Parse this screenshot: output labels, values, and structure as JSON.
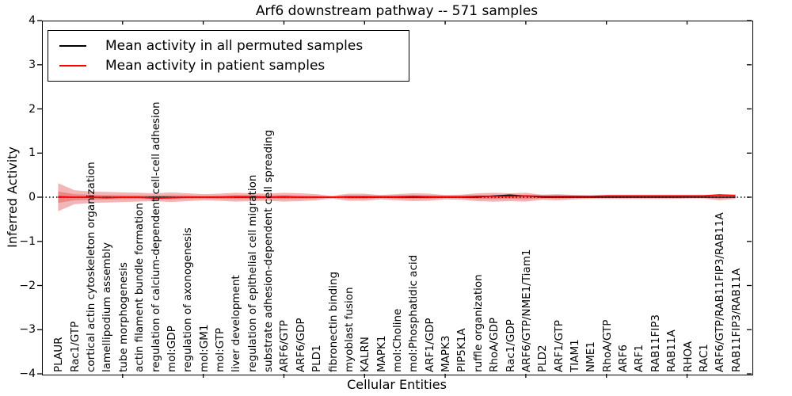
{
  "chart_data": {
    "type": "line",
    "title": "Arf6 downstream pathway -- 571 samples",
    "xlabel": "Cellular Entities",
    "ylabel": "Inferred Activity",
    "ylim": [
      -4,
      4
    ],
    "yticks": {
      "values": [
        4,
        3,
        2,
        1,
        0,
        -1,
        -2,
        -3,
        -4
      ],
      "labels": [
        "4",
        "3",
        "2",
        "1",
        "0",
        "−1",
        "−2",
        "−3",
        "−4"
      ]
    },
    "xtick_major_interval": 5,
    "legend_position": "upper left",
    "grid": false,
    "categories": [
      "PLAUR",
      "Rac1/GTP",
      "cortical actin cytoskeleton organization",
      "lamellipodium assembly",
      "tube morphogenesis",
      "actin filament bundle formation",
      "regulation of calcium-dependent cell-cell adhesion",
      "mol:GDP",
      "regulation of axonogenesis",
      "mol:GM1",
      "mol:GTP",
      "liver development",
      "regulation of epithelial cell migration",
      "substrate adhesion-dependent cell spreading",
      "ARF6/GTP",
      "ARF6/GDP",
      "PLD1",
      "fibronectin binding",
      "myoblast fusion",
      "KALRN",
      "MAPK1",
      "mol:Choline",
      "mol:Phosphatidic acid",
      "ARF1/GDP",
      "MAPK3",
      "PIP5K1A",
      "ruffle organization",
      "RhoA/GDP",
      "Rac1/GDP",
      "ARF6/GTP/NME1/Tiam1",
      "PLD2",
      "ARF1/GTP",
      "TIAM1",
      "NME1",
      "RhoA/GTP",
      "ARF6",
      "ARF1",
      "RAB11FIP3",
      "RAB11A",
      "RHOA",
      "RAC1",
      "ARF6/GTP/RAB11FIP3/RAB11A",
      "RAB11FIP3/RAB11A"
    ],
    "series": [
      {
        "name": "Mean activity in all permuted samples",
        "color": "#000000",
        "style": "solid",
        "values": [
          0,
          0,
          0,
          0,
          0,
          0,
          0,
          0,
          0,
          0,
          0,
          0,
          0,
          0,
          0,
          0,
          0,
          0,
          0,
          0,
          0,
          0,
          0,
          0,
          0,
          0,
          0,
          0.03,
          0.05,
          0.03,
          0,
          0,
          0,
          0,
          0,
          0,
          0,
          0,
          0,
          0,
          0,
          0,
          0
        ]
      },
      {
        "name": "Mean activity in patient samples",
        "color": "#ff0000",
        "style": "solid",
        "values": [
          0.01,
          0,
          0,
          -0.01,
          0,
          0,
          -0.02,
          -0.01,
          0,
          0,
          0,
          0.01,
          0.01,
          0,
          0.01,
          0,
          0,
          0,
          0.01,
          0.01,
          0.01,
          0.01,
          0.02,
          0.01,
          0.01,
          0.01,
          0.02,
          0.02,
          0.02,
          0.03,
          0.02,
          0.02,
          0.02,
          0.02,
          0.03,
          0.03,
          0.03,
          0.03,
          0.03,
          0.03,
          0.03,
          0.05,
          0.04
        ]
      }
    ],
    "reference_line": {
      "y": 0,
      "color": "#000000",
      "style": "dotted"
    },
    "band": {
      "center": 0,
      "color": "#e05050",
      "outer_half_width": [
        0.32,
        0.16,
        0.13,
        0.12,
        0.11,
        0.1,
        0.09,
        0.11,
        0.09,
        0.07,
        0.08,
        0.1,
        0.09,
        0.08,
        0.1,
        0.09,
        0.07,
        0.03,
        0.08,
        0.08,
        0.05,
        0.07,
        0.09,
        0.08,
        0.05,
        0.06,
        0.09,
        0.1,
        0.09,
        0.1,
        0.06,
        0.07,
        0.05,
        0.04,
        0.04,
        0.04,
        0.04,
        0.04,
        0.04,
        0.03,
        0.03,
        0.07,
        0.04
      ],
      "inner_half_width": [
        0.13,
        0.07,
        0.055,
        0.05,
        0.045,
        0.04,
        0.04,
        0.045,
        0.04,
        0.03,
        0.035,
        0.045,
        0.04,
        0.035,
        0.045,
        0.04,
        0.03,
        0.015,
        0.035,
        0.035,
        0.02,
        0.03,
        0.04,
        0.035,
        0.02,
        0.025,
        0.04,
        0.045,
        0.04,
        0.045,
        0.025,
        0.03,
        0.02,
        0.018,
        0.018,
        0.018,
        0.018,
        0.018,
        0.018,
        0.015,
        0.015,
        0.03,
        0.018
      ]
    }
  }
}
